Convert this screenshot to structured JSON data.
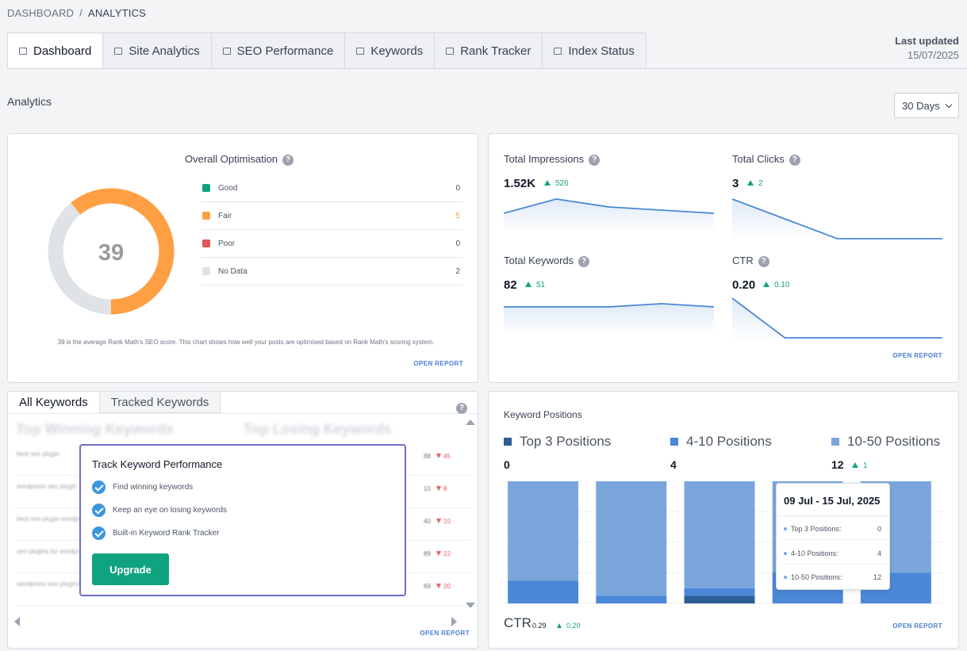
{
  "breadcrumb": {
    "root": "DASHBOARD",
    "separator": "/",
    "current": "ANALYTICS"
  },
  "tabs": [
    {
      "label": "Dashboard",
      "active": true
    },
    {
      "label": "Site Analytics"
    },
    {
      "label": "SEO Performance"
    },
    {
      "label": "Keywords"
    },
    {
      "label": "Rank Tracker"
    },
    {
      "label": "Index Status"
    }
  ],
  "last_updated": {
    "label": "Last updated",
    "date": "15/07/2025"
  },
  "section_title": "Analytics",
  "range_select": {
    "value": "30 Days"
  },
  "optimisation": {
    "title": "Overall Optimisation",
    "score": "39",
    "fair_fraction": 0.61,
    "legend": [
      {
        "name": "Good",
        "count": "0",
        "color": "#10a37f",
        "count_color": "#6b7280"
      },
      {
        "name": "Fair",
        "count": "5",
        "color": "#ff9f43",
        "count_color": "#f0a14a"
      },
      {
        "name": "Poor",
        "count": "0",
        "color": "#e0545a",
        "count_color": "#6b7280"
      },
      {
        "name": "No Data",
        "count": "2",
        "color": "#dfe2e6",
        "count_color": "#6b7280"
      }
    ],
    "note": "39 is the average Rank Math's SEO score. This chart shows how well your posts are optimised based on Rank Math's scoring system.",
    "open_report": "OPEN REPORT"
  },
  "stats": {
    "impressions": {
      "label": "Total Impressions",
      "value": "1.52K",
      "delta": "526",
      "spark": [
        62,
        71,
        66,
        64,
        62
      ]
    },
    "clicks": {
      "label": "Total Clicks",
      "value": "3",
      "delta": "2",
      "spark": [
        3,
        2,
        1,
        1,
        1
      ]
    },
    "keywords": {
      "label": "Total Keywords",
      "value": "82",
      "delta": "51",
      "spark": [
        82,
        82,
        82,
        84,
        82
      ]
    },
    "ctr": {
      "label": "CTR",
      "value": "0.20",
      "delta": "0.10",
      "spark": [
        0.3,
        0.2,
        0.2,
        0.2,
        0.2
      ]
    },
    "open_report": "OPEN REPORT"
  },
  "keywords_panel": {
    "tabs": [
      {
        "label": "All Keywords",
        "active": true
      },
      {
        "label": "Tracked Keywords"
      }
    ],
    "top_winning": "Top Winning Keywords",
    "top_losing": "Top Losing Keywords",
    "rows": [
      {
        "keyword": "best seo plugin",
        "num": "88",
        "change": "45"
      },
      {
        "keyword": "wordpress seo plugin",
        "num": "10",
        "change": "8"
      },
      {
        "keyword": "best seo plugin wordpress",
        "num": "40",
        "change": "10"
      },
      {
        "keyword": "seo plugins for wordpress",
        "num": "89",
        "change": "22"
      },
      {
        "keyword": "wordpress seo plugins",
        "num": "69",
        "change": "20"
      }
    ],
    "popup": {
      "title": "Track Keyword Performance",
      "features": [
        "Find winning keywords",
        "Keep an eye on losing keywords",
        "Built-in Keyword Rank Tracker"
      ],
      "button": "Upgrade"
    },
    "open_report": "OPEN REPORT"
  },
  "positions": {
    "title": "Keyword Positions",
    "legend": [
      {
        "name": "Top 3 Positions",
        "value": "0",
        "color": "#2d5e95"
      },
      {
        "name": "4-10 Positions",
        "value": "4",
        "color": "#4a87d6"
      },
      {
        "name": "10-50 Positions",
        "value": "12",
        "delta": "1",
        "color": "#7aa6dc"
      }
    ],
    "chart_data": {
      "type": "bar",
      "stacked": true,
      "categories": [
        "",
        "",
        "",
        "",
        "09 Jul - 15 Jul, 2025"
      ],
      "series": [
        {
          "name": "Top 3 Positions",
          "values": [
            0,
            0,
            1,
            0,
            0
          ],
          "color": "#2d5e95"
        },
        {
          "name": "4-10 Positions",
          "values": [
            3,
            1,
            1,
            4,
            4
          ],
          "color": "#4a87d6"
        },
        {
          "name": "10-50 Positions",
          "values": [
            13,
            15,
            14,
            12,
            12
          ],
          "color": "#7aa6dc"
        }
      ],
      "ylim": [
        0,
        16
      ],
      "grid": true
    },
    "tooltip": {
      "title": "09 Jul - 15 Jul, 2025",
      "rows": [
        {
          "label": "Top 3 Positions:",
          "value": "0"
        },
        {
          "label": "4-10 Positions:",
          "value": "4"
        },
        {
          "label": "10-50 Positions:",
          "value": "12"
        }
      ]
    },
    "ctr": {
      "label": "CTR",
      "value": "0.29",
      "delta": "0.20"
    },
    "open_report": "OPEN REPORT"
  }
}
